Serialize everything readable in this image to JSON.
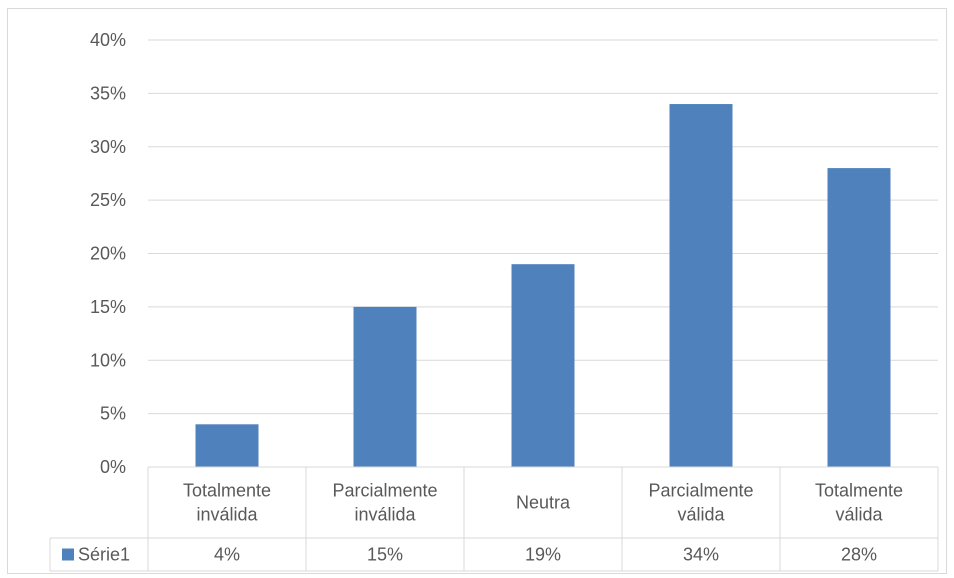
{
  "chart_data": {
    "type": "bar",
    "title": "",
    "xlabel": "",
    "ylabel": "",
    "categories": [
      [
        "Totalmente",
        "inválida"
      ],
      [
        "Parcialmente",
        "inválida"
      ],
      [
        "Neutra"
      ],
      [
        "Parcialmente",
        "válida"
      ],
      [
        "Totalmente",
        "válida"
      ]
    ],
    "series": [
      {
        "name": "Série1",
        "values": [
          4,
          15,
          19,
          34,
          28
        ],
        "color": "#4f81bd"
      }
    ],
    "data_table_values": [
      "4%",
      "15%",
      "19%",
      "34%",
      "28%"
    ],
    "y_ticks": [
      "0%",
      "5%",
      "10%",
      "15%",
      "20%",
      "25%",
      "30%",
      "35%",
      "40%"
    ],
    "ylim": [
      0,
      40
    ],
    "y_unit": "%",
    "grid": true,
    "legend": "data-table",
    "colors": {
      "bar": "#4f81bd",
      "grid": "#d9d9d9",
      "text": "#595959"
    }
  }
}
